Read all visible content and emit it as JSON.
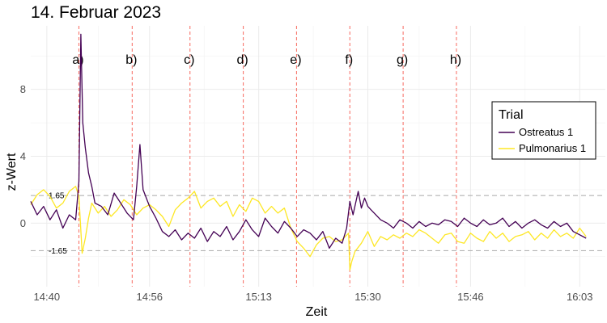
{
  "chart_data": {
    "type": "line",
    "title": "14. Februar 2023",
    "xlabel": "Zeit",
    "ylabel": "z-Wert",
    "x_ticks": [
      "14:40",
      "14:56",
      "15:13",
      "15:30",
      "15:46",
      "16:03"
    ],
    "x_tick_minutes": [
      880,
      896,
      913,
      930,
      946,
      963
    ],
    "xlim_minutes": [
      877.5,
      967
    ],
    "y_ticks": [
      0,
      4,
      8
    ],
    "ylim": [
      -3.8,
      11.8
    ],
    "thresholds": [
      {
        "value": 1.65,
        "label": "1.65"
      },
      {
        "value": -1.65,
        "label": "-1.65"
      }
    ],
    "events": [
      {
        "label": "a)",
        "minute": 885.0
      },
      {
        "label": "b)",
        "minute": 893.3
      },
      {
        "label": "c)",
        "minute": 902.3
      },
      {
        "label": "d)",
        "minute": 910.6
      },
      {
        "label": "e)",
        "minute": 918.9
      },
      {
        "label": "f)",
        "minute": 927.2
      },
      {
        "label": "g)",
        "minute": 935.5
      },
      {
        "label": "h)",
        "minute": 943.8
      }
    ],
    "legend": {
      "title": "Trial",
      "position": "right"
    },
    "series": [
      {
        "name": "Ostreatus 1",
        "color": "#440154",
        "x": [
          877.5,
          878.5,
          879.5,
          880.5,
          881.5,
          882.5,
          883.5,
          884.5,
          885.0,
          885.3,
          885.6,
          886.0,
          886.5,
          887.0,
          887.5,
          888.5,
          889.5,
          890.5,
          891.5,
          892.5,
          893.5,
          894.0,
          894.5,
          895.0,
          896.0,
          897.0,
          898.0,
          899.0,
          900.0,
          901.0,
          902.0,
          903.0,
          904.0,
          905.0,
          906.0,
          907.0,
          908.0,
          909.0,
          910.0,
          911.0,
          912.0,
          913.0,
          914.0,
          915.0,
          916.0,
          917.0,
          918.0,
          919.0,
          920.0,
          921.0,
          922.0,
          923.0,
          924.0,
          925.0,
          926.0,
          926.7,
          927.2,
          927.7,
          928.5,
          929.0,
          929.5,
          930.0,
          930.5,
          931.0,
          932.0,
          933.0,
          934.0,
          935.0,
          936.0,
          937.0,
          938.0,
          939.0,
          940.0,
          941.0,
          942.0,
          943.0,
          944.0,
          945.0,
          946.0,
          947.0,
          948.0,
          949.0,
          950.0,
          951.0,
          952.0,
          953.0,
          954.0,
          955.0,
          956.0,
          957.0,
          958.0,
          959.0,
          960.0,
          961.0,
          962.0,
          963.0,
          964.0
        ],
        "y": [
          1.3,
          0.5,
          1.0,
          0.2,
          0.8,
          -0.3,
          0.5,
          0.2,
          2.5,
          11.3,
          6.0,
          4.5,
          3.0,
          2.2,
          1.2,
          1.0,
          0.5,
          1.8,
          1.2,
          0.6,
          0.2,
          2.2,
          4.7,
          2.0,
          1.0,
          0.3,
          -0.5,
          -0.8,
          -0.4,
          -1.0,
          -0.6,
          -0.9,
          -0.3,
          -1.1,
          -0.5,
          -0.8,
          -0.2,
          -1.0,
          -0.5,
          0.2,
          -0.4,
          -0.8,
          0.3,
          -0.2,
          -0.6,
          0.1,
          -0.3,
          -0.8,
          -0.4,
          -0.6,
          -1.0,
          -0.5,
          -1.5,
          -0.9,
          -1.2,
          -0.3,
          1.3,
          0.5,
          1.9,
          0.9,
          1.5,
          1.0,
          0.8,
          0.6,
          0.2,
          0.0,
          -0.3,
          0.2,
          0.0,
          -0.3,
          0.1,
          -0.2,
          0.0,
          -0.1,
          0.2,
          0.1,
          -0.2,
          0.3,
          0.0,
          -0.2,
          0.2,
          -0.1,
          0.0,
          0.3,
          -0.2,
          0.1,
          -0.3,
          0.0,
          0.2,
          -0.1,
          -0.3,
          0.1,
          -0.2,
          0.0,
          -0.5,
          -0.7,
          -0.9
        ]
      },
      {
        "name": "Pulmonarius 1",
        "color": "#fde725",
        "x": [
          877.5,
          878.5,
          879.5,
          880.5,
          881.5,
          882.5,
          883.5,
          884.5,
          885.0,
          885.5,
          886.0,
          886.5,
          887.0,
          888.0,
          889.0,
          890.0,
          891.0,
          892.0,
          893.0,
          894.0,
          895.0,
          896.0,
          897.0,
          898.0,
          899.0,
          900.0,
          901.0,
          902.0,
          903.0,
          904.0,
          905.0,
          906.0,
          907.0,
          908.0,
          909.0,
          910.0,
          911.0,
          912.0,
          913.0,
          914.0,
          915.0,
          916.0,
          917.0,
          918.0,
          919.0,
          920.0,
          921.0,
          922.0,
          923.0,
          924.0,
          925.0,
          926.0,
          927.0,
          927.2,
          927.5,
          928.0,
          929.0,
          930.0,
          931.0,
          932.0,
          933.0,
          934.0,
          935.0,
          936.0,
          937.0,
          938.0,
          939.0,
          940.0,
          941.0,
          942.0,
          943.0,
          944.0,
          945.0,
          946.0,
          947.0,
          948.0,
          949.0,
          950.0,
          951.0,
          952.0,
          953.0,
          954.0,
          955.0,
          956.0,
          957.0,
          958.0,
          959.0,
          960.0,
          961.0,
          962.0,
          963.0,
          964.0
        ],
        "y": [
          1.1,
          1.7,
          2.0,
          1.6,
          0.9,
          1.2,
          1.9,
          2.2,
          1.6,
          -1.8,
          -0.9,
          0.3,
          1.2,
          0.6,
          1.0,
          0.4,
          0.8,
          1.4,
          1.1,
          0.5,
          0.9,
          1.1,
          0.8,
          0.4,
          -0.2,
          0.8,
          1.2,
          1.5,
          1.9,
          0.9,
          1.3,
          1.5,
          1.0,
          1.3,
          0.4,
          1.1,
          0.7,
          1.5,
          1.3,
          0.6,
          1.0,
          0.6,
          0.9,
          -0.3,
          -1.1,
          -1.5,
          -2.0,
          -1.3,
          -0.9,
          -0.8,
          -1.1,
          -1.0,
          -0.6,
          -2.8,
          -2.3,
          -1.7,
          -1.2,
          -0.5,
          -1.4,
          -0.8,
          -1.0,
          -0.7,
          -0.9,
          -0.6,
          -0.8,
          -0.4,
          -0.6,
          -0.9,
          -1.2,
          -0.7,
          -0.6,
          -1.1,
          -1.2,
          -0.6,
          -0.9,
          -1.1,
          -0.5,
          -0.9,
          -0.6,
          -1.1,
          -0.8,
          -0.7,
          -0.5,
          -1.0,
          -0.6,
          -0.9,
          -0.4,
          -0.8,
          -0.6,
          -0.9,
          -0.3,
          -0.8
        ]
      }
    ]
  }
}
